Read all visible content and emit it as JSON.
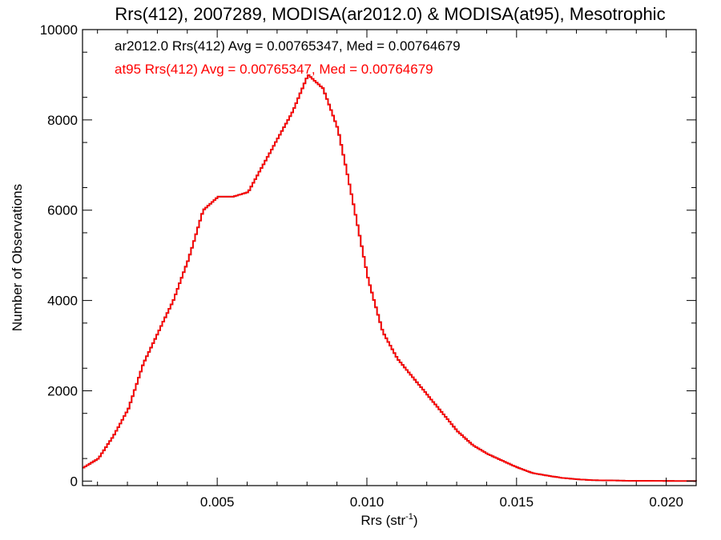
{
  "chart_data": {
    "type": "line",
    "title": "Rrs(412), 2007289, MODISA(ar2012.0) & MODISA(at95), Mesotrophic",
    "xlabel_main": "Rrs (str",
    "xlabel_sup": "-1",
    "xlabel_close": ")",
    "ylabel": "Number of Observations",
    "xlim": [
      0.0005,
      0.021
    ],
    "ylim": [
      -100,
      10000
    ],
    "xticks": [
      0.005,
      0.01,
      0.015,
      0.02
    ],
    "xtick_labels": [
      "0.005",
      "0.010",
      "0.015",
      "0.020"
    ],
    "yticks": [
      0,
      2000,
      4000,
      6000,
      8000,
      10000
    ],
    "ytick_labels": [
      "0",
      "2000",
      "4000",
      "6000",
      "8000",
      "10000"
    ],
    "grid": false,
    "annotations": [
      {
        "text": "ar2012.0 Rrs(412) Avg = 0.00765347, Med = 0.00764679",
        "color": "#000000"
      },
      {
        "text": "at95 Rrs(412) Avg = 0.00765347, Med = 0.00764679",
        "color": "#ff0000"
      }
    ],
    "series": [
      {
        "color": "#000000",
        "x": [
          0.0005,
          0.001,
          0.0015,
          0.002,
          0.0025,
          0.003,
          0.0035,
          0.004,
          0.0045,
          0.005,
          0.0055,
          0.006,
          0.0065,
          0.007,
          0.0075,
          0.008,
          0.0085,
          0.009,
          0.0095,
          0.01,
          0.0105,
          0.011,
          0.0115,
          0.012,
          0.0125,
          0.013,
          0.0135,
          0.014,
          0.0145,
          0.015,
          0.0155,
          0.016,
          0.0165,
          0.017,
          0.0175,
          0.018,
          0.0185,
          0.019,
          0.0195,
          0.02,
          0.0205,
          0.021
        ],
        "y": [
          300,
          500,
          1000,
          1600,
          2600,
          3300,
          4000,
          4900,
          6000,
          6300,
          6300,
          6400,
          7000,
          7600,
          8200,
          9000,
          8700,
          7800,
          6200,
          4500,
          3300,
          2700,
          2300,
          1900,
          1500,
          1100,
          800,
          600,
          450,
          300,
          180,
          120,
          70,
          40,
          20,
          15,
          10,
          5,
          5,
          3,
          2,
          1
        ]
      },
      {
        "color": "#ff0000",
        "x": [
          0.0005,
          0.001,
          0.0015,
          0.002,
          0.0025,
          0.003,
          0.0035,
          0.004,
          0.0045,
          0.005,
          0.0055,
          0.006,
          0.0065,
          0.007,
          0.0075,
          0.008,
          0.0085,
          0.009,
          0.0095,
          0.01,
          0.0105,
          0.011,
          0.0115,
          0.012,
          0.0125,
          0.013,
          0.0135,
          0.014,
          0.0145,
          0.015,
          0.0155,
          0.016,
          0.0165,
          0.017,
          0.0175,
          0.018,
          0.0185,
          0.019,
          0.0195,
          0.02,
          0.0205,
          0.021
        ],
        "y": [
          300,
          500,
          1000,
          1600,
          2600,
          3300,
          4000,
          4900,
          6000,
          6300,
          6300,
          6400,
          7000,
          7600,
          8200,
          9000,
          8700,
          7800,
          6200,
          4500,
          3300,
          2700,
          2300,
          1900,
          1500,
          1100,
          800,
          600,
          450,
          300,
          180,
          120,
          70,
          40,
          20,
          15,
          10,
          5,
          5,
          3,
          2,
          1
        ]
      }
    ]
  }
}
